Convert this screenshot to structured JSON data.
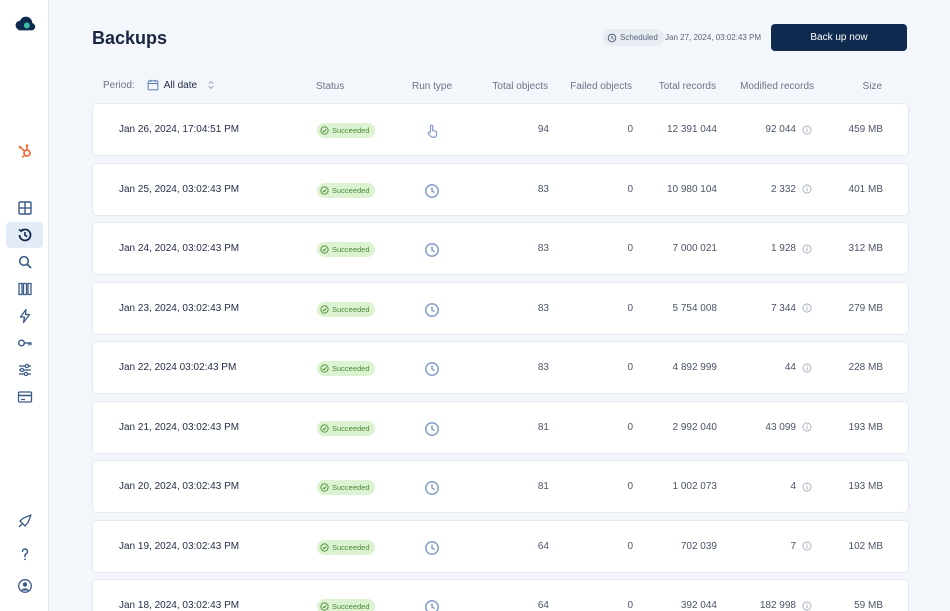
{
  "page": {
    "title": "Backups"
  },
  "header": {
    "scheduled_label": "Scheduled",
    "scheduled_time": "Jan 27, 2024, 03:02:43 PM",
    "backup_button": "Back up now"
  },
  "filter": {
    "period_label": "Period:",
    "period_value": "All date"
  },
  "columns": {
    "status": "Status",
    "run_type": "Run type",
    "total_objects": "Total objects",
    "failed_objects": "Failed objects",
    "total_records": "Total records",
    "modified_records": "Modified records",
    "size": "Size"
  },
  "sidebar": {
    "icons": [
      "logo-icon",
      "hubspot-icon",
      "dashboard-icon",
      "history-icon",
      "search-icon",
      "library-icon",
      "lightning-icon",
      "key-icon",
      "settings-sliders-icon",
      "billing-card-icon",
      "rocket-icon",
      "help-icon",
      "user-account-icon"
    ],
    "active": "history-icon"
  },
  "colors": {
    "accent": "#0f2a4e",
    "success_bg": "#dcf3d2",
    "success_text": "#4c8a36"
  },
  "rows": [
    {
      "date": "Jan 26, 2024, 17:04:51 PM",
      "status": "Succeeded",
      "run_type": "manual",
      "total_objects": "94",
      "failed_objects": "0",
      "total_records": "12 391 044",
      "modified_records": "92 044",
      "size": "459 MB"
    },
    {
      "date": "Jan 25, 2024, 03:02:43 PM",
      "status": "Succeeded",
      "run_type": "scheduled",
      "total_objects": "83",
      "failed_objects": "0",
      "total_records": "10 980 104",
      "modified_records": "2 332",
      "size": "401 MB"
    },
    {
      "date": "Jan 24, 2024, 03:02:43 PM",
      "status": "Succeeded",
      "run_type": "scheduled",
      "total_objects": "83",
      "failed_objects": "0",
      "total_records": "7 000 021",
      "modified_records": "1 928",
      "size": "312 MB"
    },
    {
      "date": "Jan 23, 2024, 03:02:43 PM",
      "status": "Succeeded",
      "run_type": "scheduled",
      "total_objects": "83",
      "failed_objects": "0",
      "total_records": "5 754 008",
      "modified_records": "7 344",
      "size": "279 MB"
    },
    {
      "date": "Jan 22, 2024 03:02:43 PM",
      "status": "Succeeded",
      "run_type": "scheduled",
      "total_objects": "83",
      "failed_objects": "0",
      "total_records": "4 892 999",
      "modified_records": "44",
      "size": "228 MB"
    },
    {
      "date": "Jan 21, 2024, 03:02:43 PM",
      "status": "Succeeded",
      "run_type": "scheduled",
      "total_objects": "81",
      "failed_objects": "0",
      "total_records": "2 992 040",
      "modified_records": "43 099",
      "size": "193 MB"
    },
    {
      "date": "Jan 20, 2024, 03:02:43 PM",
      "status": "Succeeded",
      "run_type": "scheduled",
      "total_objects": "81",
      "failed_objects": "0",
      "total_records": "1 002 073",
      "modified_records": "4",
      "size": "193 MB"
    },
    {
      "date": "Jan 19, 2024, 03:02:43 PM",
      "status": "Succeeded",
      "run_type": "scheduled",
      "total_objects": "64",
      "failed_objects": "0",
      "total_records": "702 039",
      "modified_records": "7",
      "size": "102 MB"
    },
    {
      "date": "Jan 18, 2024, 03:02:43 PM",
      "status": "Succeeded",
      "run_type": "scheduled",
      "total_objects": "64",
      "failed_objects": "0",
      "total_records": "392 044",
      "modified_records": "182 998",
      "size": "59 MB"
    }
  ]
}
